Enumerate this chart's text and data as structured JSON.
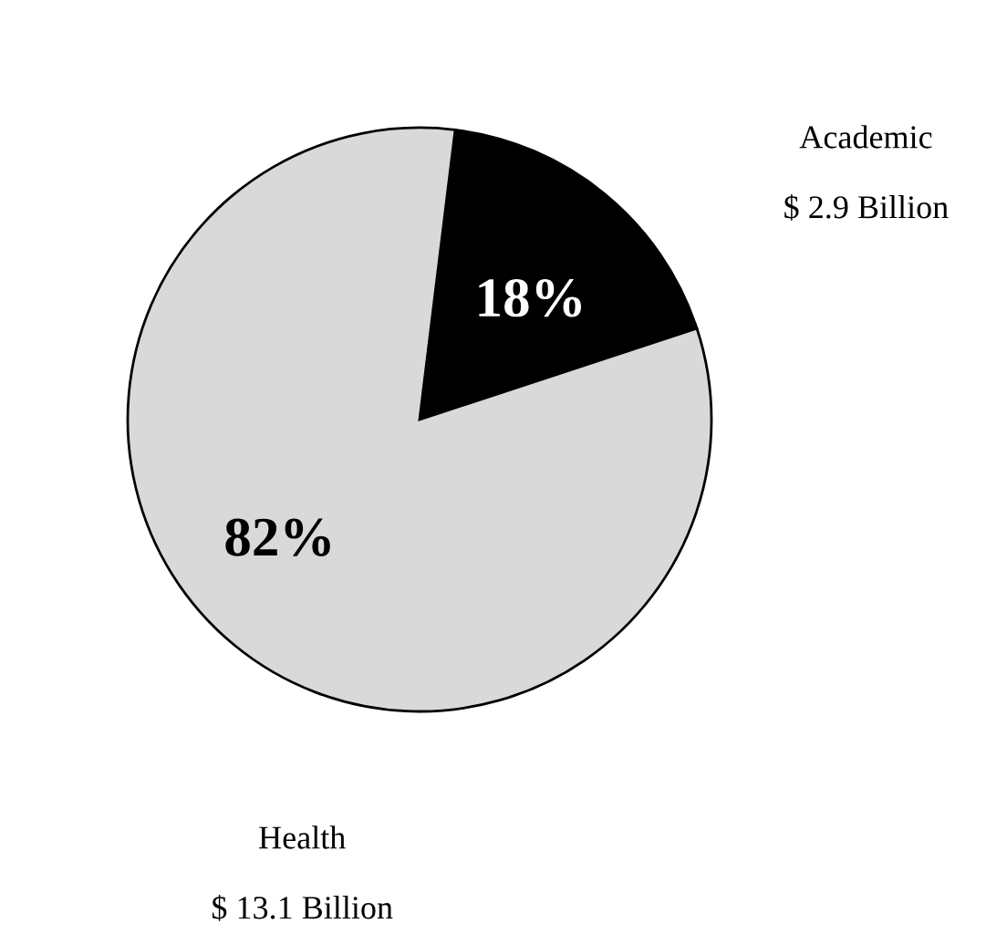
{
  "chart_data": {
    "type": "pie",
    "categories": [
      "Academic",
      "Health"
    ],
    "values": [
      18,
      82
    ],
    "value_labels": [
      "18%",
      "82%"
    ],
    "colors": [
      "#000000",
      "#d9d9d9"
    ],
    "annotations": [
      "$ 2.9 Billion",
      "$ 13.1 Billion"
    ]
  }
}
